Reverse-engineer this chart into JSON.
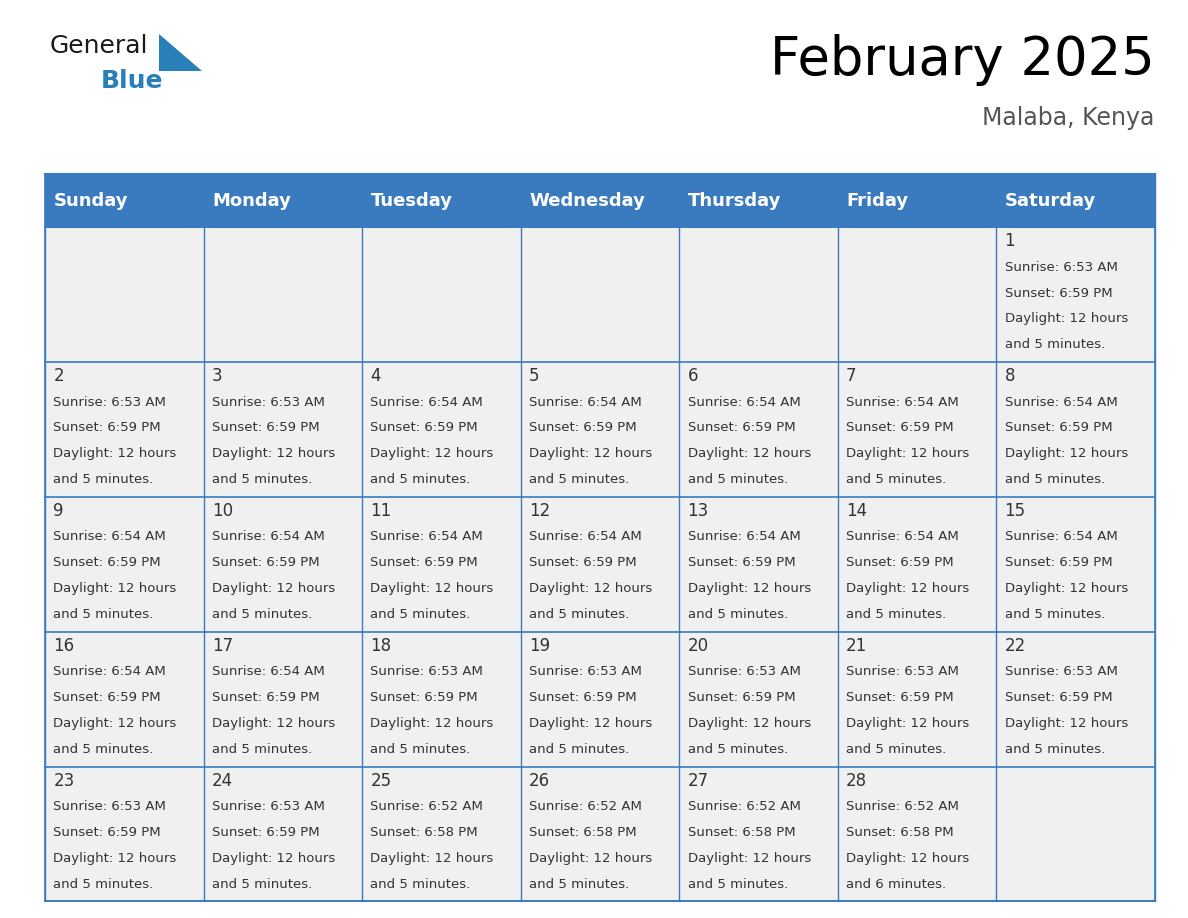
{
  "title": "February 2025",
  "subtitle": "Malaba, Kenya",
  "header_bg": "#3a7abf",
  "header_text_color": "#ffffff",
  "cell_bg": "#f0f0f0",
  "border_color": "#3a7abf",
  "text_color": "#333333",
  "days_of_week": [
    "Sunday",
    "Monday",
    "Tuesday",
    "Wednesday",
    "Thursday",
    "Friday",
    "Saturday"
  ],
  "title_fontsize": 38,
  "subtitle_fontsize": 17,
  "header_fontsize": 13,
  "day_num_fontsize": 12,
  "cell_fontsize": 9.5,
  "calendar": [
    [
      null,
      null,
      null,
      null,
      null,
      null,
      {
        "day": 1,
        "sunrise": "6:53 AM",
        "sunset": "6:59 PM",
        "daylight_line1": "Daylight: 12 hours",
        "daylight_line2": "and 5 minutes."
      }
    ],
    [
      {
        "day": 2,
        "sunrise": "6:53 AM",
        "sunset": "6:59 PM",
        "daylight_line1": "Daylight: 12 hours",
        "daylight_line2": "and 5 minutes."
      },
      {
        "day": 3,
        "sunrise": "6:53 AM",
        "sunset": "6:59 PM",
        "daylight_line1": "Daylight: 12 hours",
        "daylight_line2": "and 5 minutes."
      },
      {
        "day": 4,
        "sunrise": "6:54 AM",
        "sunset": "6:59 PM",
        "daylight_line1": "Daylight: 12 hours",
        "daylight_line2": "and 5 minutes."
      },
      {
        "day": 5,
        "sunrise": "6:54 AM",
        "sunset": "6:59 PM",
        "daylight_line1": "Daylight: 12 hours",
        "daylight_line2": "and 5 minutes."
      },
      {
        "day": 6,
        "sunrise": "6:54 AM",
        "sunset": "6:59 PM",
        "daylight_line1": "Daylight: 12 hours",
        "daylight_line2": "and 5 minutes."
      },
      {
        "day": 7,
        "sunrise": "6:54 AM",
        "sunset": "6:59 PM",
        "daylight_line1": "Daylight: 12 hours",
        "daylight_line2": "and 5 minutes."
      },
      {
        "day": 8,
        "sunrise": "6:54 AM",
        "sunset": "6:59 PM",
        "daylight_line1": "Daylight: 12 hours",
        "daylight_line2": "and 5 minutes."
      }
    ],
    [
      {
        "day": 9,
        "sunrise": "6:54 AM",
        "sunset": "6:59 PM",
        "daylight_line1": "Daylight: 12 hours",
        "daylight_line2": "and 5 minutes."
      },
      {
        "day": 10,
        "sunrise": "6:54 AM",
        "sunset": "6:59 PM",
        "daylight_line1": "Daylight: 12 hours",
        "daylight_line2": "and 5 minutes."
      },
      {
        "day": 11,
        "sunrise": "6:54 AM",
        "sunset": "6:59 PM",
        "daylight_line1": "Daylight: 12 hours",
        "daylight_line2": "and 5 minutes."
      },
      {
        "day": 12,
        "sunrise": "6:54 AM",
        "sunset": "6:59 PM",
        "daylight_line1": "Daylight: 12 hours",
        "daylight_line2": "and 5 minutes."
      },
      {
        "day": 13,
        "sunrise": "6:54 AM",
        "sunset": "6:59 PM",
        "daylight_line1": "Daylight: 12 hours",
        "daylight_line2": "and 5 minutes."
      },
      {
        "day": 14,
        "sunrise": "6:54 AM",
        "sunset": "6:59 PM",
        "daylight_line1": "Daylight: 12 hours",
        "daylight_line2": "and 5 minutes."
      },
      {
        "day": 15,
        "sunrise": "6:54 AM",
        "sunset": "6:59 PM",
        "daylight_line1": "Daylight: 12 hours",
        "daylight_line2": "and 5 minutes."
      }
    ],
    [
      {
        "day": 16,
        "sunrise": "6:54 AM",
        "sunset": "6:59 PM",
        "daylight_line1": "Daylight: 12 hours",
        "daylight_line2": "and 5 minutes."
      },
      {
        "day": 17,
        "sunrise": "6:54 AM",
        "sunset": "6:59 PM",
        "daylight_line1": "Daylight: 12 hours",
        "daylight_line2": "and 5 minutes."
      },
      {
        "day": 18,
        "sunrise": "6:53 AM",
        "sunset": "6:59 PM",
        "daylight_line1": "Daylight: 12 hours",
        "daylight_line2": "and 5 minutes."
      },
      {
        "day": 19,
        "sunrise": "6:53 AM",
        "sunset": "6:59 PM",
        "daylight_line1": "Daylight: 12 hours",
        "daylight_line2": "and 5 minutes."
      },
      {
        "day": 20,
        "sunrise": "6:53 AM",
        "sunset": "6:59 PM",
        "daylight_line1": "Daylight: 12 hours",
        "daylight_line2": "and 5 minutes."
      },
      {
        "day": 21,
        "sunrise": "6:53 AM",
        "sunset": "6:59 PM",
        "daylight_line1": "Daylight: 12 hours",
        "daylight_line2": "and 5 minutes."
      },
      {
        "day": 22,
        "sunrise": "6:53 AM",
        "sunset": "6:59 PM",
        "daylight_line1": "Daylight: 12 hours",
        "daylight_line2": "and 5 minutes."
      }
    ],
    [
      {
        "day": 23,
        "sunrise": "6:53 AM",
        "sunset": "6:59 PM",
        "daylight_line1": "Daylight: 12 hours",
        "daylight_line2": "and 5 minutes."
      },
      {
        "day": 24,
        "sunrise": "6:53 AM",
        "sunset": "6:59 PM",
        "daylight_line1": "Daylight: 12 hours",
        "daylight_line2": "and 5 minutes."
      },
      {
        "day": 25,
        "sunrise": "6:52 AM",
        "sunset": "6:58 PM",
        "daylight_line1": "Daylight: 12 hours",
        "daylight_line2": "and 5 minutes."
      },
      {
        "day": 26,
        "sunrise": "6:52 AM",
        "sunset": "6:58 PM",
        "daylight_line1": "Daylight: 12 hours",
        "daylight_line2": "and 5 minutes."
      },
      {
        "day": 27,
        "sunrise": "6:52 AM",
        "sunset": "6:58 PM",
        "daylight_line1": "Daylight: 12 hours",
        "daylight_line2": "and 5 minutes."
      },
      {
        "day": 28,
        "sunrise": "6:52 AM",
        "sunset": "6:58 PM",
        "daylight_line1": "Daylight: 12 hours",
        "daylight_line2": "and 6 minutes."
      },
      null
    ]
  ],
  "logo_general_color": "#1a1a1a",
  "logo_blue_color": "#2980b9",
  "logo_triangle_color": "#2980b9"
}
